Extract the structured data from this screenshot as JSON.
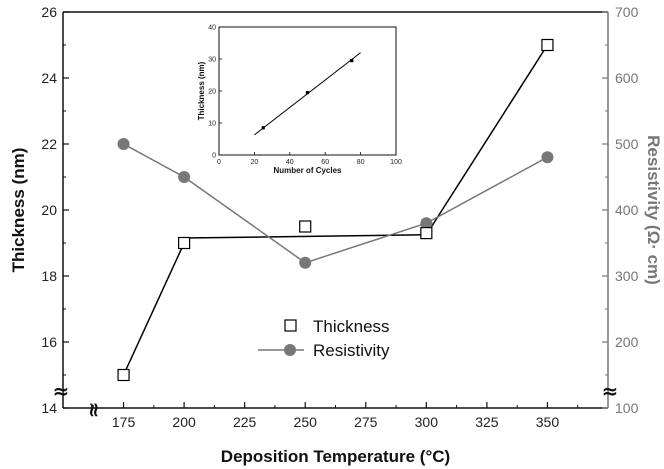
{
  "chart_data": [
    {
      "type": "line",
      "title": "",
      "xlabel": "Deposition Temperature (°C)",
      "ylabel_left": "Thickness (nm)",
      "ylabel_right": "Resistivity (Ω· cm)",
      "xlim": [
        150,
        375
      ],
      "ylim_left": [
        14,
        26
      ],
      "ylim_right": [
        100,
        700
      ],
      "xticks": [
        175,
        200,
        225,
        250,
        275,
        300,
        325,
        350
      ],
      "yticks_left": [
        14,
        16,
        18,
        20,
        22,
        24,
        26
      ],
      "yticks_right": [
        100,
        200,
        300,
        400,
        500,
        600,
        700
      ],
      "axis_break_symbol": "≈",
      "x_break_symbol": "≈",
      "legend_position": "center",
      "series": [
        {
          "name": "Thickness",
          "axis": "left",
          "marker": "open-square",
          "color": "#000000",
          "x": [
            175,
            200,
            250,
            300,
            350
          ],
          "y": [
            15.0,
            19.0,
            19.5,
            19.3,
            25.0
          ]
        },
        {
          "name": "Resistivity",
          "axis": "right",
          "marker": "filled-circle",
          "color": "#777777",
          "x": [
            175,
            200,
            250,
            300,
            350
          ],
          "y": [
            500,
            450,
            320,
            380,
            480
          ]
        }
      ],
      "thickness_fit_segments": [
        {
          "x": [
            175,
            200
          ],
          "y": [
            15.0,
            19.0
          ]
        },
        {
          "x": [
            200,
            300
          ],
          "y": [
            19.15,
            19.25
          ]
        },
        {
          "x": [
            300,
            350
          ],
          "y": [
            19.25,
            25.0
          ]
        }
      ]
    },
    {
      "type": "scatter",
      "title": "",
      "xlabel": "Number of Cycles",
      "ylabel": "Thickness (nm)",
      "xlim": [
        0,
        100
      ],
      "ylim": [
        0,
        40
      ],
      "xticks": [
        0,
        20,
        40,
        60,
        80,
        100
      ],
      "yticks": [
        0,
        10,
        20,
        30,
        40
      ],
      "points": {
        "x": [
          25,
          50,
          75
        ],
        "y": [
          8.5,
          19.5,
          29.5
        ]
      },
      "fit_line": {
        "x": [
          20,
          80
        ],
        "y": [
          6.3,
          32.0
        ]
      }
    }
  ]
}
